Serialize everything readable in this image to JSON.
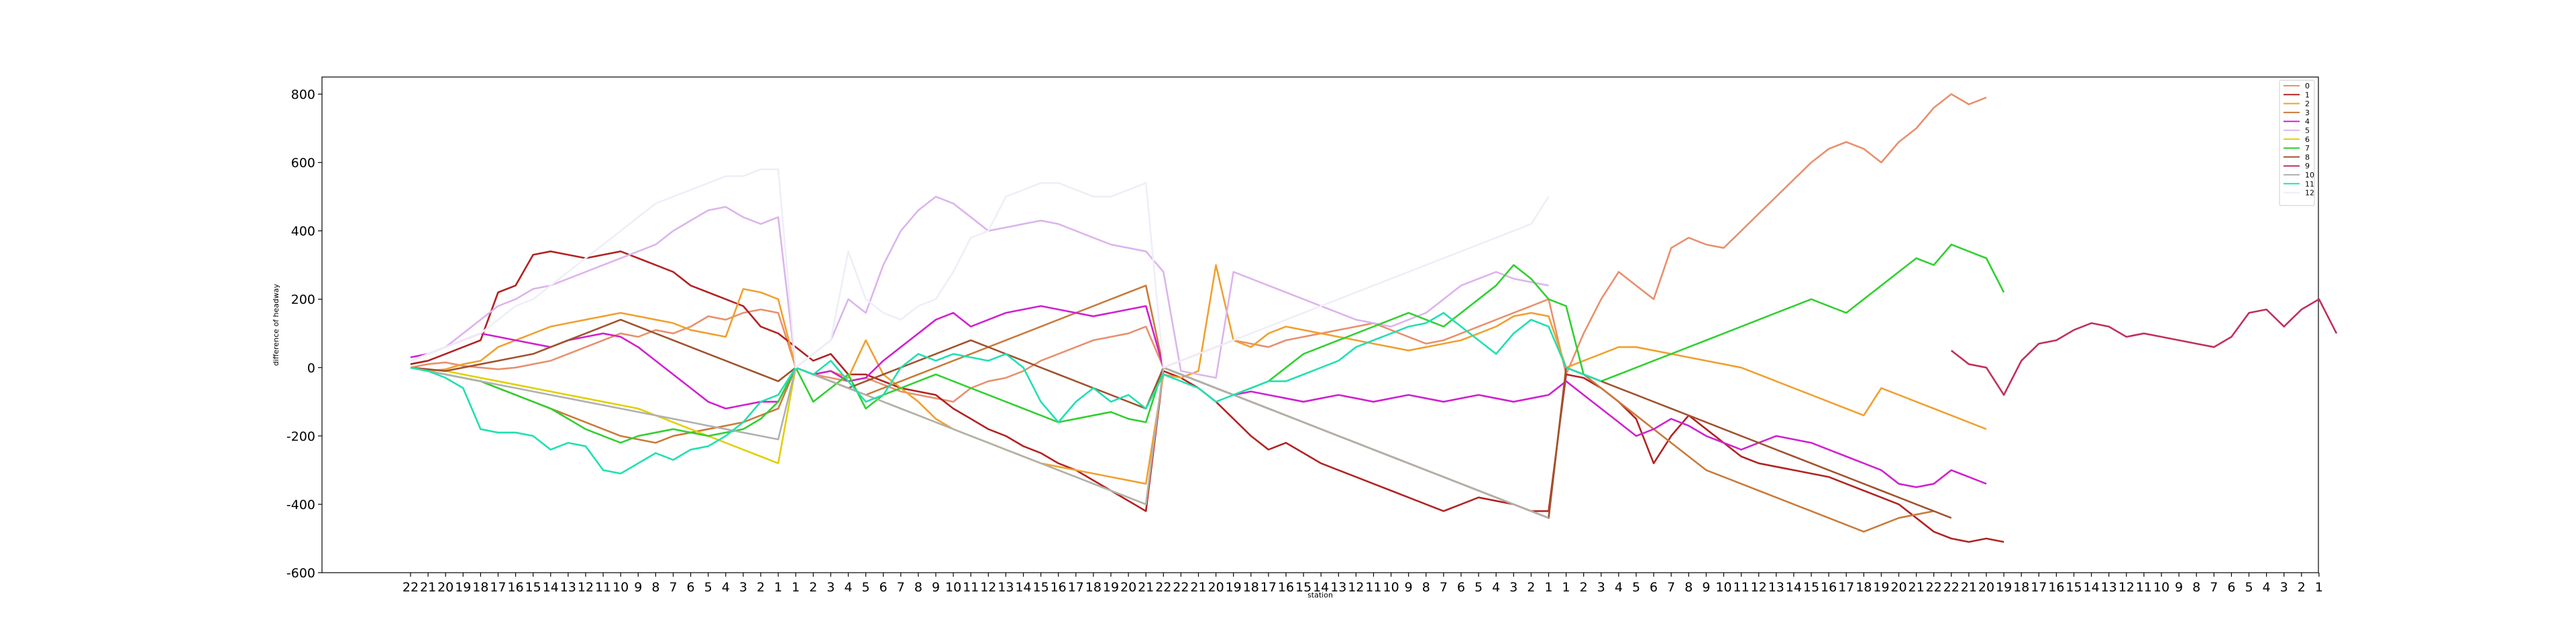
{
  "chart_data": {
    "type": "line",
    "title": "",
    "xlabel": "station",
    "ylabel": "difference of headway",
    "ylim": [
      -600,
      850
    ],
    "yticks": [
      -600,
      -400,
      -200,
      0,
      200,
      400,
      600,
      800
    ],
    "grid": false,
    "legend_position": "top-right",
    "x_tick_labels": [
      "22",
      "21",
      "20",
      "19",
      "18",
      "17",
      "16",
      "15",
      "14",
      "13",
      "12",
      "11",
      "10",
      "9",
      "8",
      "7",
      "6",
      "5",
      "4",
      "3",
      "2",
      "1",
      "1",
      "2",
      "3",
      "4",
      "5",
      "6",
      "7",
      "8",
      "9",
      "10",
      "11",
      "12",
      "13",
      "14",
      "15",
      "16",
      "17",
      "18",
      "19",
      "20",
      "21",
      "22",
      "22",
      "21",
      "20",
      "19",
      "18",
      "17",
      "16",
      "15",
      "14",
      "13",
      "12",
      "11",
      "10",
      "9",
      "8",
      "7",
      "6",
      "5",
      "4",
      "3",
      "2",
      "1",
      "1",
      "2",
      "3",
      "4",
      "5",
      "6",
      "7",
      "8",
      "9",
      "10",
      "11",
      "12",
      "13",
      "14",
      "15",
      "16",
      "17",
      "18",
      "19",
      "20",
      "21",
      "22",
      "22",
      "21",
      "20",
      "19",
      "18",
      "17",
      "16",
      "15",
      "14",
      "13",
      "12",
      "11",
      "10",
      "9",
      "8",
      "7",
      "6",
      "5",
      "4",
      "3",
      "2",
      "1"
    ],
    "series": [
      {
        "name": "0",
        "color": "#e8906c",
        "start": 0,
        "values": [
          0,
          10,
          15,
          5,
          0,
          -5,
          0,
          10,
          20,
          40,
          60,
          80,
          100,
          90,
          110,
          100,
          120,
          150,
          140,
          160,
          170,
          160,
          0,
          -20,
          -30,
          -40,
          -30,
          -50,
          -70,
          -80,
          -90,
          -100,
          -60,
          -40,
          -30,
          -10,
          20,
          40,
          60,
          80,
          90,
          100,
          120,
          0,
          20,
          40,
          60,
          80,
          70,
          60,
          80,
          90,
          100,
          110,
          120,
          130,
          110,
          90,
          70,
          80,
          100,
          120,
          140,
          160,
          180,
          200,
          -20,
          100,
          200,
          280,
          240,
          200,
          350,
          380,
          360,
          350,
          400,
          450,
          500,
          550,
          600,
          640,
          660,
          640,
          600,
          660,
          700,
          760,
          800,
          770,
          790
        ]
      },
      {
        "name": "1",
        "color": "#b22222",
        "start": 0,
        "values": [
          10,
          20,
          40,
          60,
          80,
          220,
          240,
          330,
          340,
          330,
          320,
          330,
          340,
          320,
          300,
          280,
          240,
          220,
          200,
          180,
          120,
          100,
          60,
          20,
          40,
          -20,
          -20,
          -40,
          -60,
          -70,
          -80,
          -120,
          -150,
          -180,
          -200,
          -230,
          -250,
          -280,
          -300,
          -330,
          -360,
          -390,
          -420,
          -10,
          -30,
          -60,
          -100,
          -150,
          -200,
          -240,
          -220,
          -250,
          -280,
          -300,
          -320,
          -340,
          -360,
          -380,
          -400,
          -420,
          -400,
          -380,
          -390,
          -400,
          -420,
          -420,
          -20,
          -30,
          -60,
          -100,
          -150,
          -280,
          -200,
          -140,
          -180,
          -220,
          -260,
          -280,
          -290,
          -300,
          -310,
          -320,
          -340,
          -360,
          -380,
          -400,
          -440,
          -480,
          -500,
          -510,
          -500,
          -510
        ]
      },
      {
        "name": "2",
        "color": "#f0a030",
        "start": 0,
        "values": [
          0,
          -10,
          -5,
          10,
          20,
          60,
          80,
          100,
          120,
          130,
          140,
          150,
          160,
          150,
          140,
          130,
          110,
          100,
          90,
          230,
          220,
          200,
          0,
          -20,
          -10,
          -30,
          80,
          -20,
          -60,
          -100,
          -150,
          -180,
          -200,
          -220,
          -240,
          -260,
          -280,
          -290,
          -300,
          -310,
          -320,
          -330,
          -340,
          -20,
          -30,
          -10,
          300,
          80,
          60,
          100,
          120,
          110,
          100,
          90,
          80,
          70,
          60,
          50,
          60,
          70,
          80,
          100,
          120,
          150,
          160,
          150,
          0,
          20,
          40,
          60,
          60,
          50,
          40,
          30,
          20,
          10,
          0,
          -20,
          -40,
          -60,
          -80,
          -100,
          -120,
          -140,
          -60,
          -80,
          -100,
          -120,
          -140,
          -160,
          -180
        ]
      },
      {
        "name": "3",
        "color": "#c97a3a",
        "start": 0,
        "values": [
          0,
          -10,
          -20,
          -30,
          -40,
          -60,
          -80,
          -100,
          -120,
          -140,
          -160,
          -180,
          -200,
          -210,
          -220,
          -200,
          -190,
          -180,
          -170,
          -160,
          -140,
          -120,
          0,
          -20,
          -40,
          -60,
          -80,
          -60,
          -40,
          -20,
          0,
          20,
          40,
          60,
          80,
          100,
          120,
          140,
          160,
          180,
          200,
          220,
          240,
          0,
          -20,
          -40,
          -60,
          -80,
          -100,
          -120,
          -140,
          -160,
          -180,
          -200,
          -220,
          -240,
          -260,
          -280,
          -300,
          -320,
          -340,
          -360,
          -380,
          -400,
          -420,
          -440,
          0,
          -20,
          -60,
          -100,
          -140,
          -180,
          -220,
          -260,
          -300,
          -320,
          -340,
          -360,
          -380,
          -400,
          -420,
          -440,
          -460,
          -480,
          -460,
          -440,
          -430,
          -420
        ]
      },
      {
        "name": "4",
        "color": "#d020d0",
        "start": 0,
        "values": [
          30,
          40,
          60,
          80,
          100,
          90,
          80,
          70,
          60,
          80,
          90,
          100,
          90,
          60,
          20,
          -20,
          -60,
          -100,
          -120,
          -110,
          -100,
          -100,
          0,
          -20,
          -10,
          -40,
          -30,
          20,
          60,
          100,
          140,
          160,
          120,
          140,
          160,
          170,
          180,
          170,
          160,
          150,
          160,
          170,
          180,
          0,
          -20,
          -40,
          -60,
          -80,
          -70,
          -80,
          -90,
          -100,
          -90,
          -80,
          -90,
          -100,
          -90,
          -80,
          -90,
          -100,
          -90,
          -80,
          -90,
          -100,
          -90,
          -80,
          -40,
          -80,
          -120,
          -160,
          -200,
          -180,
          -150,
          -170,
          -200,
          -220,
          -240,
          -220,
          -200,
          -210,
          -220,
          -240,
          -260,
          -280,
          -300,
          -340,
          -350,
          -340,
          -300,
          -320,
          -340
        ]
      },
      {
        "name": "5",
        "color": "#dcb4ec",
        "start": 0,
        "values": [
          20,
          40,
          60,
          100,
          140,
          180,
          200,
          230,
          240,
          260,
          280,
          300,
          320,
          340,
          360,
          400,
          430,
          460,
          470,
          440,
          420,
          440,
          0,
          40,
          80,
          200,
          160,
          300,
          400,
          460,
          500,
          480,
          440,
          400,
          410,
          420,
          430,
          420,
          400,
          380,
          360,
          350,
          340,
          280,
          -10,
          -20,
          -30,
          280,
          260,
          240,
          220,
          200,
          180,
          160,
          140,
          130,
          120,
          140,
          160,
          200,
          240,
          260,
          280,
          260,
          250,
          240
        ]
      },
      {
        "name": "6",
        "color": "#e0d000",
        "start": 0,
        "values": [
          0,
          -5,
          -10,
          -20,
          -30,
          -40,
          -50,
          -60,
          -70,
          -80,
          -90,
          -100,
          -110,
          -120,
          -140,
          -160,
          -180,
          -200,
          -220,
          -240,
          -260,
          -280,
          0,
          -20,
          -40,
          -60,
          -80,
          -100,
          -120,
          -140,
          -160,
          -180,
          -200,
          -220,
          -240,
          -260,
          -280,
          -300,
          -320,
          -340,
          -360,
          -380,
          -400,
          0,
          -20,
          -40,
          -60,
          -80,
          -100,
          -120,
          -140,
          -160,
          -180,
          -200,
          -220,
          -240,
          -260,
          -280,
          -300,
          -320,
          -340,
          -360,
          -380,
          -400,
          -420,
          -440
        ]
      },
      {
        "name": "7",
        "color": "#30d030",
        "start": 0,
        "values": [
          0,
          -10,
          -20,
          -30,
          -40,
          -60,
          -80,
          -100,
          -120,
          -150,
          -180,
          -200,
          -220,
          -200,
          -190,
          -180,
          -190,
          -200,
          -190,
          -180,
          -150,
          -100,
          0,
          -100,
          -60,
          -20,
          -120,
          -80,
          -60,
          -40,
          -20,
          -40,
          -60,
          -80,
          -100,
          -120,
          -140,
          -160,
          -150,
          -140,
          -130,
          -150,
          -160,
          0,
          -20,
          -40,
          -60,
          -80,
          -60,
          -40,
          0,
          40,
          60,
          80,
          100,
          120,
          140,
          160,
          140,
          120,
          160,
          200,
          240,
          300,
          260,
          200,
          180,
          -20,
          -40,
          -20,
          0,
          20,
          40,
          60,
          80,
          100,
          120,
          140,
          160,
          180,
          200,
          180,
          160,
          200,
          240,
          280,
          320,
          300,
          360,
          340,
          320,
          220
        ]
      },
      {
        "name": "8",
        "color": "#a0522d",
        "start": 0,
        "values": [
          0,
          -5,
          -10,
          0,
          10,
          20,
          30,
          40,
          60,
          80,
          100,
          120,
          140,
          120,
          100,
          80,
          60,
          40,
          20,
          0,
          -20,
          -40,
          0,
          -20,
          -40,
          -60,
          -40,
          -20,
          0,
          20,
          40,
          60,
          80,
          60,
          40,
          20,
          0,
          -20,
          -40,
          -60,
          -80,
          -100,
          -120,
          0,
          -20,
          -40,
          -60,
          -80,
          -100,
          -120,
          -140,
          -160,
          -180,
          -200,
          -220,
          -240,
          -260,
          -280,
          -300,
          -320,
          -340,
          -360,
          -380,
          -400,
          -420,
          -440,
          0,
          -20,
          -40,
          -60,
          -80,
          -100,
          -120,
          -140,
          -160,
          -180,
          -200,
          -220,
          -240,
          -260,
          -280,
          -300,
          -320,
          -340,
          -360,
          -380,
          -400,
          -420,
          -440
        ]
      },
      {
        "name": "9",
        "color": "#c0305a",
        "start": 88,
        "values": [
          50,
          10,
          0,
          -80,
          20,
          70,
          80,
          110,
          130,
          120,
          90,
          100,
          90,
          80,
          70,
          60,
          90,
          160,
          170,
          120,
          170,
          200,
          100
        ]
      },
      {
        "name": "10",
        "color": "#b0b0b0",
        "start": 0,
        "values": [
          0,
          -10,
          -20,
          -30,
          -40,
          -50,
          -60,
          -70,
          -80,
          -90,
          -100,
          -110,
          -120,
          -130,
          -140,
          -150,
          -160,
          -170,
          -180,
          -190,
          -200,
          -210,
          0,
          -20,
          -40,
          -60,
          -80,
          -100,
          -120,
          -140,
          -160,
          -180,
          -200,
          -220,
          -240,
          -260,
          -280,
          -300,
          -320,
          -340,
          -360,
          -380,
          -400,
          0,
          -20,
          -40,
          -60,
          -80,
          -100,
          -120,
          -140,
          -160,
          -180,
          -200,
          -220,
          -240,
          -260,
          -280,
          -300,
          -320,
          -340,
          -360,
          -380,
          -400,
          -420,
          -440
        ]
      },
      {
        "name": "11",
        "color": "#20e0b0",
        "start": 0,
        "values": [
          0,
          -10,
          -30,
          -60,
          -180,
          -190,
          -190,
          -200,
          -240,
          -220,
          -230,
          -300,
          -310,
          -280,
          -250,
          -270,
          -240,
          -230,
          -200,
          -160,
          -100,
          -80,
          0,
          -20,
          20,
          -40,
          -100,
          -80,
          0,
          40,
          20,
          40,
          30,
          20,
          40,
          0,
          -100,
          -160,
          -100,
          -60,
          -100,
          -80,
          -120,
          -20,
          -40,
          -60,
          -100,
          -80,
          -60,
          -40,
          -40,
          -20,
          0,
          20,
          60,
          80,
          100,
          120,
          130,
          160,
          120,
          80,
          40,
          100,
          140,
          120,
          0,
          -20,
          -40
        ]
      },
      {
        "name": "12",
        "color": "#eeeef8",
        "start": 0,
        "values": [
          20,
          40,
          60,
          80,
          100,
          140,
          180,
          200,
          240,
          280,
          320,
          360,
          400,
          440,
          480,
          500,
          520,
          540,
          560,
          560,
          580,
          580,
          0,
          40,
          80,
          340,
          200,
          160,
          140,
          180,
          200,
          280,
          380,
          400,
          500,
          520,
          540,
          540,
          520,
          500,
          500,
          520,
          540,
          0,
          20,
          40,
          60,
          80,
          100,
          120,
          140,
          160,
          180,
          200,
          220,
          240,
          260,
          280,
          300,
          320,
          340,
          360,
          380,
          400,
          420,
          500
        ]
      }
    ]
  }
}
